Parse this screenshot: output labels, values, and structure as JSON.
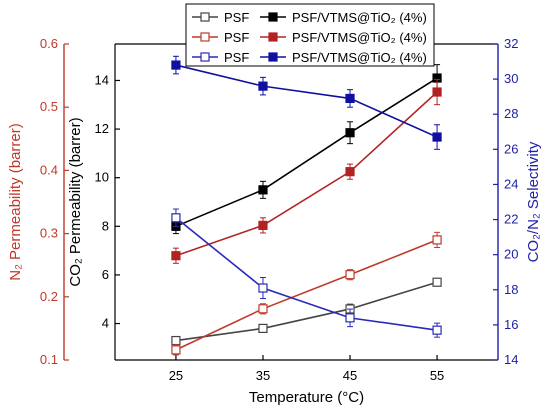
{
  "chart_data": {
    "type": "line",
    "xlabel": "Temperature (°C)",
    "x": [
      25,
      35,
      45,
      55
    ],
    "x_ticks": [
      "25",
      "35",
      "45",
      "55"
    ],
    "xlim": [
      18,
      62
    ],
    "axes": {
      "co2": {
        "label": "CO₂ Permeability (barrer)",
        "ylim": [
          2.5,
          15.5
        ],
        "ticks": [
          "4",
          "6",
          "8",
          "10",
          "12",
          "14"
        ],
        "tick_values": [
          4,
          6,
          8,
          10,
          12,
          14
        ],
        "color": "#000000"
      },
      "n2": {
        "label": "N₂ Permeability (barrer)",
        "ylim": [
          0.1,
          0.6
        ],
        "ticks": [
          "0.1",
          "0.2",
          "0.3",
          "0.4",
          "0.5",
          "0.6"
        ],
        "tick_values": [
          0.1,
          0.2,
          0.3,
          0.4,
          0.5,
          0.6
        ],
        "color": "#c0392b"
      },
      "sel": {
        "label": "CO₂/N₂ Selectivity",
        "ylim": [
          14,
          32
        ],
        "ticks": [
          "14",
          "16",
          "18",
          "20",
          "22",
          "24",
          "26",
          "28",
          "30",
          "32"
        ],
        "tick_values": [
          14,
          16,
          18,
          20,
          22,
          24,
          26,
          28,
          30,
          32
        ],
        "color": "#1f1fa8"
      }
    },
    "series": [
      {
        "name": "PSF",
        "axis": "co2",
        "color": "#444444",
        "filled": false,
        "values": [
          3.3,
          3.8,
          4.6,
          5.7
        ],
        "errors": [
          0.15,
          0.15,
          0.2,
          0.15
        ]
      },
      {
        "name": "PSF/VTMS@TiO₂ (4%)",
        "axis": "co2",
        "color": "#000000",
        "filled": true,
        "values": [
          8.0,
          9.5,
          11.85,
          14.1
        ],
        "errors": [
          0.3,
          0.35,
          0.45,
          0.55
        ]
      },
      {
        "name": "PSF",
        "axis": "n2",
        "color": "#c0392b",
        "filled": false,
        "values": [
          0.116,
          0.181,
          0.235,
          0.29
        ],
        "errors": [
          0.008,
          0.008,
          0.008,
          0.012
        ]
      },
      {
        "name": "PSF/VTMS@TiO₂ (4%)",
        "axis": "n2",
        "color": "#b22222",
        "filled": true,
        "values": [
          0.265,
          0.313,
          0.398,
          0.524
        ],
        "errors": [
          0.012,
          0.012,
          0.012,
          0.02
        ]
      },
      {
        "name": "PSF",
        "axis": "sel",
        "color": "#2a2ab8",
        "filled": false,
        "values": [
          22.1,
          18.1,
          16.4,
          15.7
        ],
        "errors": [
          0.5,
          0.6,
          0.5,
          0.4
        ]
      },
      {
        "name": "PSF/VTMS@TiO₂ (4%)",
        "axis": "sel",
        "color": "#1010a0",
        "filled": true,
        "values": [
          30.8,
          29.6,
          28.9,
          26.7
        ],
        "errors": [
          0.5,
          0.5,
          0.5,
          0.7
        ]
      }
    ],
    "legend_position": "top-center"
  }
}
